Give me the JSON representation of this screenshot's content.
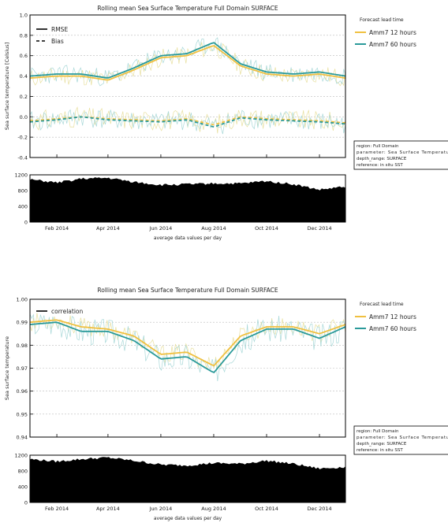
{
  "figure": {
    "subplot_xlabel": "average data values per day",
    "months": [
      "Feb 2014",
      "Apr 2014",
      "Jun 2014",
      "Aug 2014",
      "Oct 2014",
      "Dec 2014"
    ]
  },
  "legend_title": "Forecast lead time",
  "info_box": {
    "region": "region: Full Domain",
    "parameter": "parameter: Sea Surface Temperature",
    "depth": "depth_range: SURFACE",
    "reference": "reference: in situ SST"
  },
  "colors": {
    "amm7_12": "#f0c040",
    "amm7_60": "#2a9a9a",
    "raw_12": "#e8e0a0",
    "raw_60": "#a8d8d8",
    "ref_line": "#000000",
    "grid": "#bbbbbb",
    "count_fill": "#000000"
  },
  "chart_data": [
    {
      "type": "line",
      "title": "Rolling mean Sea Surface Temperature Full Domain SURFACE",
      "ylabel": "Sea surface temperature [Celsius]",
      "xlabel": "",
      "x_range": [
        "2014-01-01",
        "2014-12-31"
      ],
      "ylim": [
        -0.4,
        1.0
      ],
      "yticks": [
        "1.0",
        "0.8",
        "0.6",
        "0.4",
        "0.2",
        "0.0",
        "-0.2",
        "-0.4"
      ],
      "x": [
        "2014-01-01",
        "2014-02-01",
        "2014-03-01",
        "2014-04-01",
        "2014-05-01",
        "2014-06-01",
        "2014-07-01",
        "2014-08-01",
        "2014-09-01",
        "2014-10-01",
        "2014-11-01",
        "2014-12-01",
        "2014-12-31"
      ],
      "line_legend": [
        "RMSE",
        "Bias"
      ],
      "series": [
        {
          "name": "Amm7 12 hours",
          "metric": "RMSE",
          "values": [
            0.38,
            0.4,
            0.4,
            0.36,
            0.46,
            0.58,
            0.6,
            0.7,
            0.5,
            0.42,
            0.4,
            0.42,
            0.38
          ]
        },
        {
          "name": "Amm7 60 hours",
          "metric": "RMSE",
          "values": [
            0.4,
            0.42,
            0.42,
            0.38,
            0.48,
            0.6,
            0.62,
            0.73,
            0.52,
            0.44,
            0.42,
            0.44,
            0.4
          ]
        },
        {
          "name": "Amm7 12 hours",
          "metric": "Bias",
          "values": [
            -0.04,
            -0.02,
            0.0,
            -0.02,
            -0.03,
            -0.04,
            -0.02,
            -0.08,
            0.0,
            -0.02,
            -0.03,
            -0.04,
            -0.06
          ]
        },
        {
          "name": "Amm7 60 hours",
          "metric": "Bias",
          "values": [
            -0.05,
            -0.03,
            0.0,
            -0.03,
            -0.04,
            -0.05,
            -0.03,
            -0.1,
            -0.01,
            -0.03,
            -0.04,
            -0.05,
            -0.07
          ]
        }
      ],
      "legend": [
        "Amm7 12 hours",
        "Amm7 60 hours"
      ],
      "grid": true,
      "legend_placement": "right"
    },
    {
      "type": "area",
      "title": "",
      "ylabel": "",
      "xlabel": "average data values per day",
      "ylim": [
        0,
        1200
      ],
      "yticks": [
        "1200",
        "800",
        "400",
        "0"
      ],
      "x": [
        "2014-01-01",
        "2014-02-01",
        "2014-03-01",
        "2014-04-01",
        "2014-05-01",
        "2014-06-01",
        "2014-07-01",
        "2014-08-01",
        "2014-09-01",
        "2014-10-01",
        "2014-11-01",
        "2014-12-01",
        "2014-12-31"
      ],
      "values": [
        1080,
        1000,
        1100,
        1120,
        1020,
        940,
        960,
        980,
        980,
        1040,
        960,
        820,
        900
      ]
    },
    {
      "type": "line",
      "title": "Rolling mean Sea Surface Temperature Full Domain SURFACE",
      "ylabel": "Sea surface temperature",
      "xlabel": "",
      "x_range": [
        "2014-01-01",
        "2014-12-31"
      ],
      "ylim": [
        0.94,
        1.0
      ],
      "yticks": [
        "1.00",
        "0.99",
        "0.98",
        "0.97",
        "0.96",
        "0.95",
        "0.94"
      ],
      "x": [
        "2014-01-01",
        "2014-02-01",
        "2014-03-01",
        "2014-04-01",
        "2014-05-01",
        "2014-06-01",
        "2014-07-01",
        "2014-08-01",
        "2014-09-01",
        "2014-10-01",
        "2014-11-01",
        "2014-12-01",
        "2014-12-31"
      ],
      "line_legend": [
        "correlation"
      ],
      "series": [
        {
          "name": "Amm7 12 hours",
          "metric": "correlation",
          "values": [
            0.99,
            0.991,
            0.988,
            0.987,
            0.984,
            0.976,
            0.977,
            0.971,
            0.984,
            0.988,
            0.988,
            0.985,
            0.989
          ]
        },
        {
          "name": "Amm7 60 hours",
          "metric": "correlation",
          "values": [
            0.989,
            0.99,
            0.986,
            0.986,
            0.982,
            0.974,
            0.975,
            0.968,
            0.982,
            0.987,
            0.987,
            0.983,
            0.988
          ]
        }
      ],
      "legend": [
        "Amm7 12 hours",
        "Amm7 60 hours"
      ],
      "grid": true,
      "legend_placement": "right"
    },
    {
      "type": "area",
      "title": "",
      "ylabel": "",
      "xlabel": "average data values per day",
      "ylim": [
        0,
        1200
      ],
      "yticks": [
        "1200",
        "800",
        "400",
        "0"
      ],
      "x": [
        "2014-01-01",
        "2014-02-01",
        "2014-03-01",
        "2014-04-01",
        "2014-05-01",
        "2014-06-01",
        "2014-07-01",
        "2014-08-01",
        "2014-09-01",
        "2014-10-01",
        "2014-11-01",
        "2014-12-01",
        "2014-12-31"
      ],
      "values": [
        1100,
        1040,
        1100,
        1140,
        1060,
        960,
        940,
        1000,
        980,
        1060,
        980,
        860,
        900
      ]
    }
  ]
}
